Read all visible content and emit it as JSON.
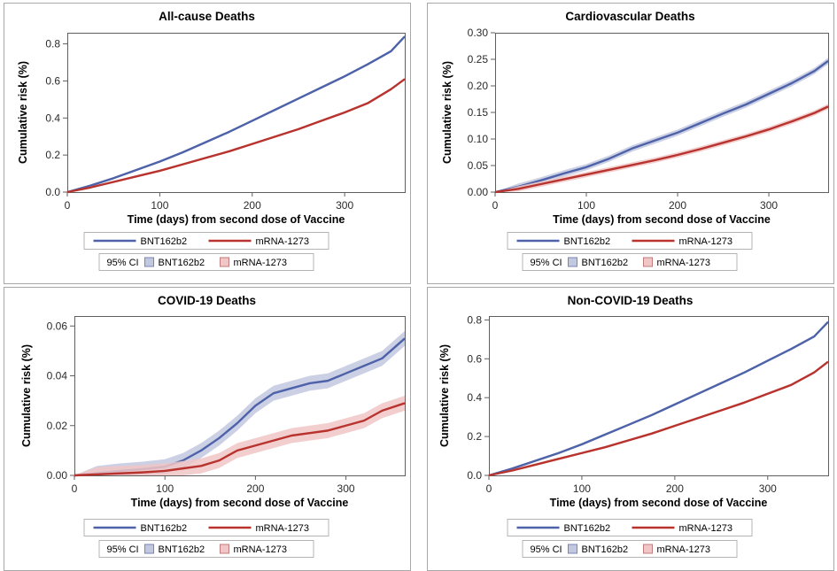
{
  "colors": {
    "bnt": "#4d62a8",
    "bnt_band": "#c3c8e1",
    "mrna": "#b8332e",
    "mrna_band": "#f0c6c6"
  },
  "legend": {
    "series_labels": [
      "BNT162b2",
      "mRNA-1273"
    ],
    "ci_label": "95% CI",
    "ci_labels": [
      "BNT162b2",
      "mRNA-1273"
    ]
  },
  "chart_data": [
    {
      "type": "line",
      "title": "All-cause Deaths",
      "xlabel": "Time (days) from second dose of Vaccine",
      "ylabel": "Cumulative risk (%)",
      "xlim": [
        0,
        365
      ],
      "ylim": [
        0,
        0.86
      ],
      "xticks": [
        0,
        100,
        200,
        300
      ],
      "xtick_labels": [
        "0",
        "100",
        "200",
        "300"
      ],
      "yticks": [
        0,
        0.2,
        0.4,
        0.6,
        0.8
      ],
      "ytick_labels": [
        "0.0",
        "0.2",
        "0.4",
        "0.6",
        "0.8"
      ],
      "series": [
        {
          "name": "BNT162b2",
          "x": [
            0,
            25,
            50,
            75,
            100,
            125,
            150,
            175,
            200,
            225,
            250,
            275,
            300,
            325,
            350,
            365
          ],
          "y": [
            0,
            0.035,
            0.075,
            0.12,
            0.165,
            0.215,
            0.27,
            0.325,
            0.385,
            0.445,
            0.505,
            0.565,
            0.625,
            0.69,
            0.76,
            0.84
          ],
          "ci_width": 0.006
        },
        {
          "name": "mRNA-1273",
          "x": [
            0,
            25,
            50,
            75,
            100,
            125,
            150,
            175,
            200,
            225,
            250,
            275,
            300,
            325,
            350,
            365
          ],
          "y": [
            0,
            0.025,
            0.055,
            0.085,
            0.115,
            0.15,
            0.185,
            0.22,
            0.26,
            0.3,
            0.34,
            0.385,
            0.43,
            0.48,
            0.555,
            0.61
          ],
          "ci_width": 0.006
        }
      ]
    },
    {
      "type": "line",
      "title": "Cardiovascular Deaths",
      "xlabel": "Time (days) from second dose of Vaccine",
      "ylabel": "Cumulative risk (%)",
      "xlim": [
        0,
        365
      ],
      "ylim": [
        0,
        0.3
      ],
      "xticks": [
        0,
        100,
        200,
        300
      ],
      "xtick_labels": [
        "0",
        "100",
        "200",
        "300"
      ],
      "yticks": [
        0,
        0.05,
        0.1,
        0.15,
        0.2,
        0.25,
        0.3
      ],
      "ytick_labels": [
        "0.00",
        "0.05",
        "0.10",
        "0.15",
        "0.20",
        "0.25",
        "0.30"
      ],
      "series": [
        {
          "name": "BNT162b2",
          "x": [
            0,
            25,
            50,
            75,
            100,
            125,
            150,
            175,
            200,
            225,
            250,
            275,
            300,
            325,
            350,
            365
          ],
          "y": [
            0,
            0.01,
            0.022,
            0.035,
            0.047,
            0.063,
            0.082,
            0.097,
            0.112,
            0.13,
            0.148,
            0.165,
            0.185,
            0.205,
            0.228,
            0.247
          ],
          "ci_width": 0.006
        },
        {
          "name": "mRNA-1273",
          "x": [
            0,
            25,
            50,
            75,
            100,
            125,
            150,
            175,
            200,
            225,
            250,
            275,
            300,
            325,
            350,
            365
          ],
          "y": [
            0,
            0.006,
            0.015,
            0.024,
            0.033,
            0.042,
            0.051,
            0.06,
            0.07,
            0.081,
            0.093,
            0.105,
            0.118,
            0.133,
            0.149,
            0.161
          ],
          "ci_width": 0.005
        }
      ]
    },
    {
      "type": "line",
      "title": "COVID-19 Deaths",
      "xlabel": "Time (days) from second dose of Vaccine",
      "ylabel": "Cumulative risk (%)",
      "xlim": [
        0,
        365
      ],
      "ylim": [
        0,
        0.064
      ],
      "xticks": [
        0,
        100,
        200,
        300
      ],
      "xtick_labels": [
        "0",
        "100",
        "200",
        "300"
      ],
      "yticks": [
        0,
        0.02,
        0.04,
        0.06
      ],
      "ytick_labels": [
        "0.00",
        "0.02",
        "0.04",
        "0.06"
      ],
      "series": [
        {
          "name": "BNT162b2",
          "x": [
            0,
            25,
            50,
            75,
            100,
            120,
            140,
            160,
            180,
            200,
            220,
            240,
            260,
            280,
            300,
            320,
            340,
            365
          ],
          "y": [
            0,
            0.0008,
            0.0018,
            0.0025,
            0.0035,
            0.006,
            0.01,
            0.015,
            0.021,
            0.028,
            0.033,
            0.035,
            0.037,
            0.038,
            0.041,
            0.044,
            0.047,
            0.055
          ],
          "ci_width": 0.003
        },
        {
          "name": "mRNA-1273",
          "x": [
            0,
            25,
            50,
            75,
            100,
            120,
            140,
            160,
            180,
            200,
            220,
            240,
            260,
            280,
            300,
            320,
            340,
            365
          ],
          "y": [
            0,
            0.0004,
            0.0008,
            0.0012,
            0.0018,
            0.0028,
            0.0038,
            0.006,
            0.01,
            0.012,
            0.014,
            0.016,
            0.017,
            0.018,
            0.02,
            0.022,
            0.026,
            0.029
          ],
          "ci_width": 0.003
        }
      ]
    },
    {
      "type": "line",
      "title": "Non-COVID-19 Deaths",
      "xlabel": "Time (days) from second dose of Vaccine",
      "ylabel": "Cumulative risk (%)",
      "xlim": [
        0,
        365
      ],
      "ylim": [
        0,
        0.82
      ],
      "xticks": [
        0,
        100,
        200,
        300
      ],
      "xtick_labels": [
        "0",
        "100",
        "200",
        "300"
      ],
      "yticks": [
        0,
        0.2,
        0.4,
        0.6,
        0.8
      ],
      "ytick_labels": [
        "0.0",
        "0.2",
        "0.4",
        "0.6",
        "0.8"
      ],
      "series": [
        {
          "name": "BNT162b2",
          "x": [
            0,
            25,
            50,
            75,
            100,
            125,
            150,
            175,
            200,
            225,
            250,
            275,
            300,
            325,
            350,
            365
          ],
          "y": [
            0,
            0.035,
            0.075,
            0.115,
            0.16,
            0.21,
            0.26,
            0.31,
            0.365,
            0.42,
            0.475,
            0.53,
            0.59,
            0.65,
            0.715,
            0.79
          ],
          "ci_width": 0.006
        },
        {
          "name": "mRNA-1273",
          "x": [
            0,
            25,
            50,
            75,
            100,
            125,
            150,
            175,
            200,
            225,
            250,
            275,
            300,
            325,
            350,
            365
          ],
          "y": [
            0,
            0.025,
            0.055,
            0.085,
            0.115,
            0.145,
            0.18,
            0.215,
            0.255,
            0.295,
            0.335,
            0.375,
            0.42,
            0.465,
            0.53,
            0.585
          ],
          "ci_width": 0.006
        }
      ]
    }
  ]
}
